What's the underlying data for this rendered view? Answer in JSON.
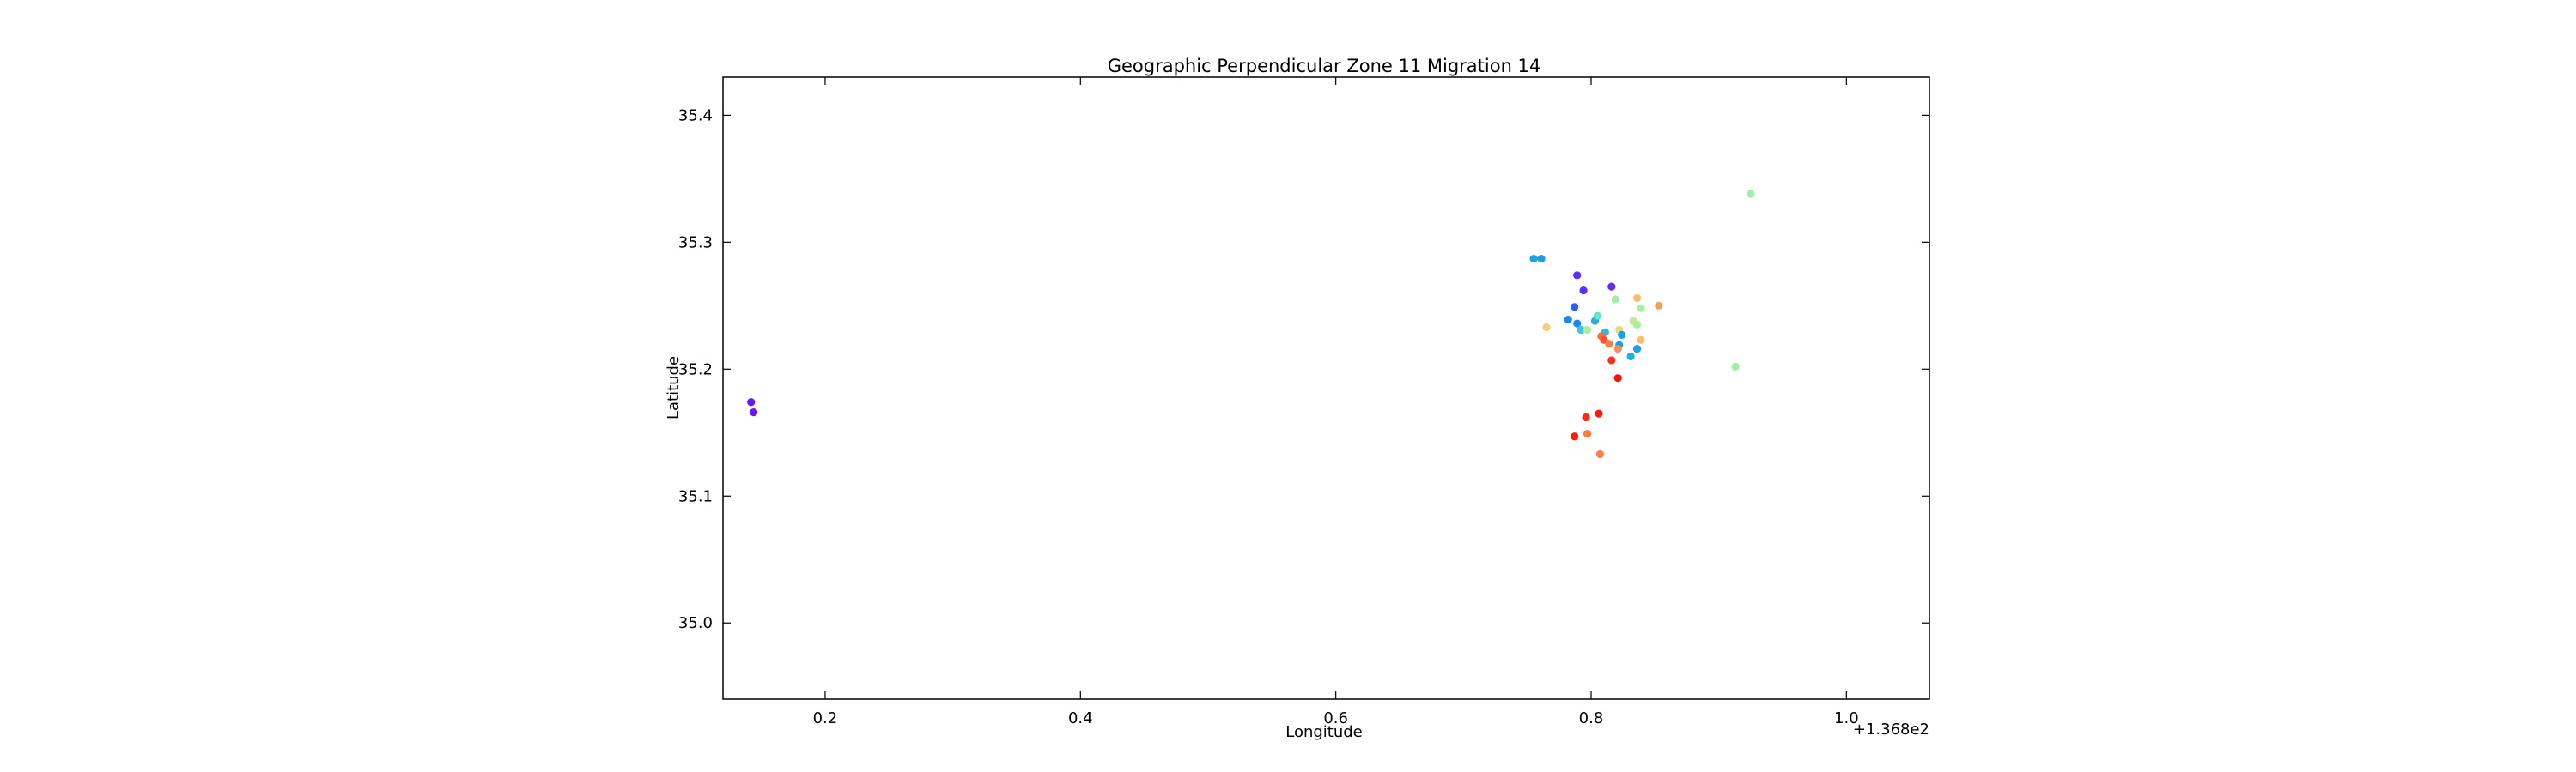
{
  "chart_data": {
    "type": "scatter",
    "title": "Geographic Perpendicular Zone 11 Migration 14",
    "xlabel": "Longitude",
    "ylabel": "Latitude",
    "x_offset_label": "+1.368e2",
    "xlim": [
      0.12,
      1.065
    ],
    "ylim": [
      34.94,
      35.43
    ],
    "x_ticks": [
      0.2,
      0.4,
      0.6,
      0.8,
      1.0
    ],
    "x_tick_labels": [
      "0.2",
      "0.4",
      "0.6",
      "0.8",
      "1.0"
    ],
    "y_ticks": [
      35.0,
      35.1,
      35.2,
      35.3,
      35.4
    ],
    "y_tick_labels": [
      "35.0",
      "35.1",
      "35.2",
      "35.3",
      "35.4"
    ],
    "grid": false,
    "colormap": "rainbow",
    "points": [
      {
        "x": 0.142,
        "y": 35.174,
        "color": "#6a14ff"
      },
      {
        "x": 0.144,
        "y": 35.166,
        "color": "#6a14ff"
      },
      {
        "x": 0.755,
        "y": 35.287,
        "color": "#1aa0e6"
      },
      {
        "x": 0.761,
        "y": 35.287,
        "color": "#1aa0e6"
      },
      {
        "x": 0.789,
        "y": 35.274,
        "color": "#5a2eff"
      },
      {
        "x": 0.794,
        "y": 35.262,
        "color": "#5a2eff"
      },
      {
        "x": 0.816,
        "y": 35.265,
        "color": "#5a2eff"
      },
      {
        "x": 0.787,
        "y": 35.249,
        "color": "#2d5cff"
      },
      {
        "x": 0.782,
        "y": 35.239,
        "color": "#1e88ee"
      },
      {
        "x": 0.789,
        "y": 35.236,
        "color": "#1e88ee"
      },
      {
        "x": 0.803,
        "y": 35.238,
        "color": "#2aa8e8"
      },
      {
        "x": 0.805,
        "y": 35.242,
        "color": "#5ee8c8"
      },
      {
        "x": 0.811,
        "y": 35.229,
        "color": "#2ab8e0"
      },
      {
        "x": 0.792,
        "y": 35.231,
        "color": "#3cc8d8"
      },
      {
        "x": 0.797,
        "y": 35.231,
        "color": "#a8f0a0"
      },
      {
        "x": 0.765,
        "y": 35.233,
        "color": "#f0d080"
      },
      {
        "x": 0.819,
        "y": 35.255,
        "color": "#9ef0a8"
      },
      {
        "x": 0.836,
        "y": 35.256,
        "color": "#f4c070"
      },
      {
        "x": 0.839,
        "y": 35.248,
        "color": "#a8f0a0"
      },
      {
        "x": 0.853,
        "y": 35.25,
        "color": "#f4a060"
      },
      {
        "x": 0.833,
        "y": 35.238,
        "color": "#c8e890"
      },
      {
        "x": 0.836,
        "y": 35.235,
        "color": "#a8f0a0"
      },
      {
        "x": 0.822,
        "y": 35.231,
        "color": "#e8d880"
      },
      {
        "x": 0.824,
        "y": 35.227,
        "color": "#1aa0e6"
      },
      {
        "x": 0.839,
        "y": 35.223,
        "color": "#f4c070"
      },
      {
        "x": 0.808,
        "y": 35.226,
        "color": "#ff6a3a"
      },
      {
        "x": 0.81,
        "y": 35.223,
        "color": "#ff5030"
      },
      {
        "x": 0.814,
        "y": 35.22,
        "color": "#ff7a40"
      },
      {
        "x": 0.822,
        "y": 35.219,
        "color": "#1aa0e6"
      },
      {
        "x": 0.836,
        "y": 35.216,
        "color": "#1aa0e6"
      },
      {
        "x": 0.821,
        "y": 35.216,
        "color": "#f49060"
      },
      {
        "x": 0.831,
        "y": 35.21,
        "color": "#1ab0f0"
      },
      {
        "x": 0.816,
        "y": 35.207,
        "color": "#ff3020"
      },
      {
        "x": 0.821,
        "y": 35.193,
        "color": "#ff1010"
      },
      {
        "x": 0.806,
        "y": 35.165,
        "color": "#ff1a10"
      },
      {
        "x": 0.796,
        "y": 35.162,
        "color": "#ff2a18"
      },
      {
        "x": 0.787,
        "y": 35.147,
        "color": "#ff1a10"
      },
      {
        "x": 0.797,
        "y": 35.149,
        "color": "#ff7a40"
      },
      {
        "x": 0.807,
        "y": 35.133,
        "color": "#ff8048"
      },
      {
        "x": 0.913,
        "y": 35.202,
        "color": "#9ef0a8"
      },
      {
        "x": 0.925,
        "y": 35.338,
        "color": "#9ef0a8"
      }
    ]
  }
}
